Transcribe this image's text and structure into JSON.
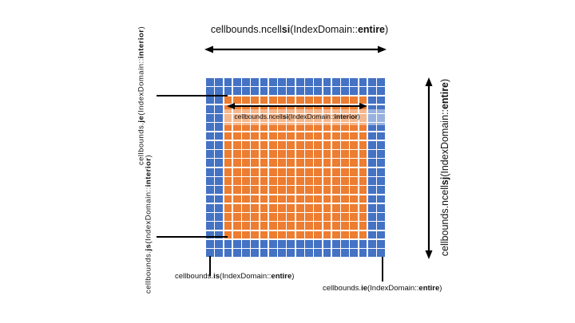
{
  "colors": {
    "border_cell": "#4472C4",
    "interior_cell": "#ED7D31",
    "grid_line": "#FFFFFF",
    "arrow": "#000000",
    "highlight_band": "rgba(255,255,255,0.45)"
  },
  "grid": {
    "cols": 20,
    "rows": 20,
    "ghost_border_cells": 2
  },
  "labels": {
    "top": {
      "parts": [
        {
          "t": "cellbounds.ncell"
        },
        {
          "t": "si",
          "b": true
        },
        {
          "t": "(IndexDomain::"
        },
        {
          "t": "entire",
          "b": true
        },
        {
          "t": ")"
        }
      ]
    },
    "right": {
      "parts": [
        {
          "t": "cellbounds.ncell"
        },
        {
          "t": "sj",
          "b": true
        },
        {
          "t": "(IndexDomain::"
        },
        {
          "t": "entire",
          "b": true
        },
        {
          "t": ")"
        }
      ]
    },
    "interior": {
      "parts": [
        {
          "t": "cellbounds.ncell"
        },
        {
          "t": "si",
          "b": true
        },
        {
          "t": "(IndexDomain::"
        },
        {
          "t": "interior",
          "b": true
        },
        {
          "t": ")"
        }
      ]
    },
    "je": {
      "parts": [
        {
          "t": "cellbounds."
        },
        {
          "t": "je",
          "b": true
        },
        {
          "t": "(IndexDomain::"
        },
        {
          "t": "interior",
          "b": true
        },
        {
          "t": ")"
        }
      ]
    },
    "js": {
      "parts": [
        {
          "t": "cellbounds."
        },
        {
          "t": "js",
          "b": true
        },
        {
          "t": "(IndexDomain::"
        },
        {
          "t": "interior",
          "b": true
        },
        {
          "t": ")"
        }
      ]
    },
    "is": {
      "parts": [
        {
          "t": "cellbounds."
        },
        {
          "t": "is",
          "b": true
        },
        {
          "t": "(IndexDomain::"
        },
        {
          "t": "entire",
          "b": true
        },
        {
          "t": ")"
        }
      ]
    },
    "ie": {
      "parts": [
        {
          "t": "cellbounds."
        },
        {
          "t": "ie",
          "b": true
        },
        {
          "t": "(IndexDomain::"
        },
        {
          "t": "entire",
          "b": true
        },
        {
          "t": ")"
        }
      ]
    }
  }
}
